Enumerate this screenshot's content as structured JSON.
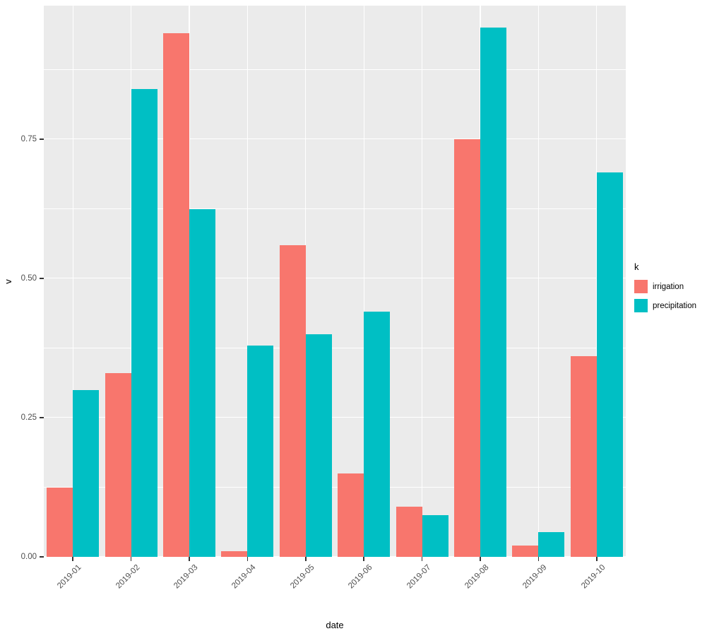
{
  "chart_data": {
    "type": "bar",
    "title": "",
    "xlabel": "date",
    "ylabel": "v",
    "legend_title": "k",
    "legend_position": "right",
    "grid": true,
    "categories": [
      "2019-01",
      "2019-02",
      "2019-03",
      "2019-04",
      "2019-05",
      "2019-06",
      "2019-07",
      "2019-08",
      "2019-09",
      "2019-10"
    ],
    "series": [
      {
        "name": "irrigation",
        "color": "#F8766D",
        "values": [
          0.125,
          0.33,
          0.94,
          0.01,
          0.56,
          0.15,
          0.09,
          0.75,
          0.02,
          0.36
        ]
      },
      {
        "name": "precipitation",
        "color": "#00BFC4",
        "values": [
          0.3,
          0.84,
          0.625,
          0.38,
          0.4,
          0.44,
          0.075,
          0.95,
          0.045,
          0.69
        ]
      }
    ],
    "y_axis": {
      "tick_labels": [
        "0.00",
        "0.25",
        "0.50",
        "0.75"
      ],
      "tick_values": [
        0,
        0.25,
        0.5,
        0.75
      ],
      "minor_values": [
        0.125,
        0.375,
        0.625,
        0.875
      ],
      "range": [
        0,
        0.99
      ]
    },
    "colors": {
      "panel_bg": "#EBEBEB",
      "grid": "#FFFFFF",
      "tick_text": "#4D4D4D",
      "axis_title": "#000000",
      "tick_mark": "#333333"
    }
  }
}
